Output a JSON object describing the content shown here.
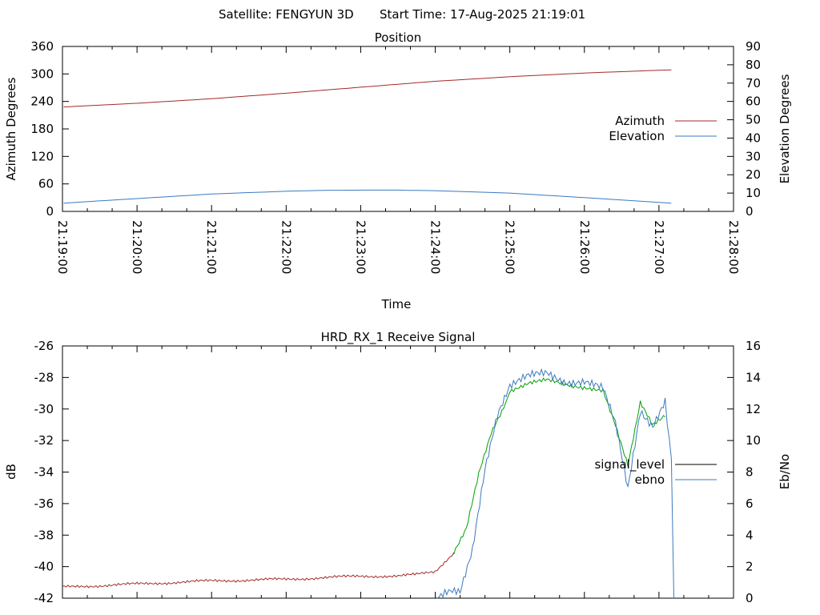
{
  "header": {
    "satellite_label": "Satellite: FENGYUN 3D",
    "start_time_label": "Start Time: 17-Aug-2025 21:19:01"
  },
  "chart_data": [
    {
      "type": "line",
      "title": "Position",
      "xlabel": "Time",
      "ylabel": "Azimuth Degrees",
      "y2label": "Elevation Degrees",
      "x_ticks": [
        "21:19:00",
        "21:20:00",
        "21:21:00",
        "21:22:00",
        "21:23:00",
        "21:24:00",
        "21:25:00",
        "21:26:00",
        "21:27:00",
        "21:28:00"
      ],
      "xlim": [
        "21:19:00",
        "21:28:00"
      ],
      "ylim": [
        0,
        360
      ],
      "y2lim": [
        0,
        90
      ],
      "y_ticks": [
        "360",
        "300",
        "240",
        "180",
        "120",
        "60",
        "0"
      ],
      "y2_ticks": [
        "90",
        "80",
        "70",
        "60",
        "50",
        "40",
        "30",
        "20",
        "10",
        "0"
      ],
      "legend_position": "right",
      "grid": false,
      "series": [
        {
          "name": "Azimuth",
          "axis": "left",
          "color": "#a52a2a",
          "x": [
            "21:19:01",
            "21:20:00",
            "21:21:00",
            "21:22:00",
            "21:23:00",
            "21:24:00",
            "21:25:00",
            "21:26:00",
            "21:27:10"
          ],
          "y": [
            228,
            236,
            246,
            258,
            271,
            284,
            294,
            302,
            309
          ]
        },
        {
          "name": "Elevation",
          "axis": "right",
          "color": "#3a7abf",
          "x": [
            "21:19:01",
            "21:20:00",
            "21:21:00",
            "21:22:00",
            "21:22:30",
            "21:23:00",
            "21:23:30",
            "21:24:00",
            "21:25:00",
            "21:26:00",
            "21:27:10"
          ],
          "y": [
            4.5,
            7,
            9.5,
            11,
            11.5,
            11.6,
            11.6,
            11.3,
            10,
            7.5,
            4.5
          ]
        }
      ]
    },
    {
      "type": "line",
      "title": "HRD_RX_1 Receive Signal",
      "ylabel": "dB",
      "y2label": "Eb/No",
      "ylim": [
        -42,
        -26
      ],
      "y2lim": [
        0,
        16
      ],
      "y_ticks": [
        "-26",
        "-28",
        "-30",
        "-32",
        "-34",
        "-36",
        "-38",
        "-40",
        "-42"
      ],
      "y2_ticks": [
        "16",
        "14",
        "12",
        "10",
        "8",
        "6",
        "4",
        "2",
        "0"
      ],
      "legend_position": "right",
      "grid": false,
      "series": [
        {
          "name": "signal_level",
          "axis": "left",
          "color": "#a52a2a",
          "x": [
            "21:19:00",
            "21:20:00",
            "21:21:00",
            "21:22:00",
            "21:23:00",
            "21:23:30",
            "21:23:45",
            "21:24:00",
            "21:24:15"
          ],
          "y": [
            -41.3,
            -41.1,
            -40.9,
            -40.8,
            -40.6,
            -40.6,
            -40.5,
            -40.3,
            -39.1
          ]
        },
        {
          "name": "",
          "axis": "left",
          "color": "#00a000",
          "x": [
            "21:24:15",
            "21:24:25",
            "21:24:35",
            "21:24:45",
            "21:24:55",
            "21:25:00",
            "21:25:15",
            "21:25:30",
            "21:25:45",
            "21:26:00",
            "21:26:15",
            "21:26:25",
            "21:26:35",
            "21:26:45",
            "21:26:55",
            "21:27:05"
          ],
          "y": [
            -39.1,
            -37.5,
            -34,
            -31.5,
            -30,
            -28.8,
            -28.4,
            -28.2,
            -28.4,
            -28.6,
            -28.9,
            -31,
            -33.5,
            -29.5,
            -31,
            -30.5
          ]
        },
        {
          "name": "ebno",
          "axis": "right",
          "color": "#3a7abf",
          "x": [
            "21:24:00",
            "21:24:20",
            "21:24:30",
            "21:24:40",
            "21:24:50",
            "21:25:00",
            "21:25:15",
            "21:25:30",
            "21:25:45",
            "21:26:00",
            "21:26:15",
            "21:26:25",
            "21:26:35",
            "21:26:45",
            "21:26:55",
            "21:27:05",
            "21:27:10",
            "21:27:12"
          ],
          "y": [
            0,
            0.5,
            3,
            8,
            11.5,
            13.5,
            14,
            14.3,
            13.8,
            13.7,
            13.2,
            11,
            7,
            12,
            11,
            12.5,
            9,
            0
          ]
        }
      ]
    }
  ]
}
